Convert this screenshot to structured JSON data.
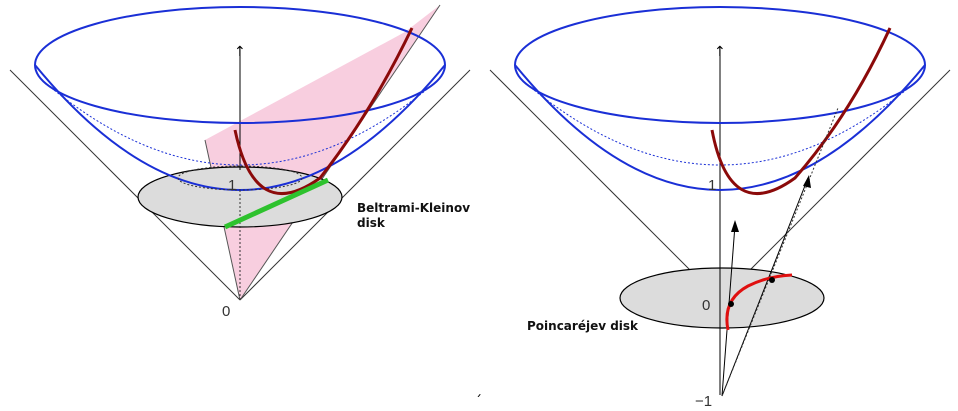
{
  "left_panel": {
    "label_one": "1",
    "label_zero": "0",
    "disk_label_line1": "Beltrami-Kleinov",
    "disk_label_line2": "disk",
    "axis_arrow": "↑"
  },
  "right_panel": {
    "label_one": "1",
    "label_zero": "0",
    "label_minus_one": "−1",
    "disk_label": "Poincaréjev disk",
    "axis_arrow": "↑"
  },
  "colors": {
    "hyperboloid": "#1a2fd6",
    "geodesic": "#8b0a0a",
    "plane": "#f7c6d9",
    "klein_chord": "#2ec22e",
    "poincare_arc": "#e01010",
    "disk_fill": "#dcdcdc",
    "cone": "#333333"
  },
  "footer_mark": "´"
}
